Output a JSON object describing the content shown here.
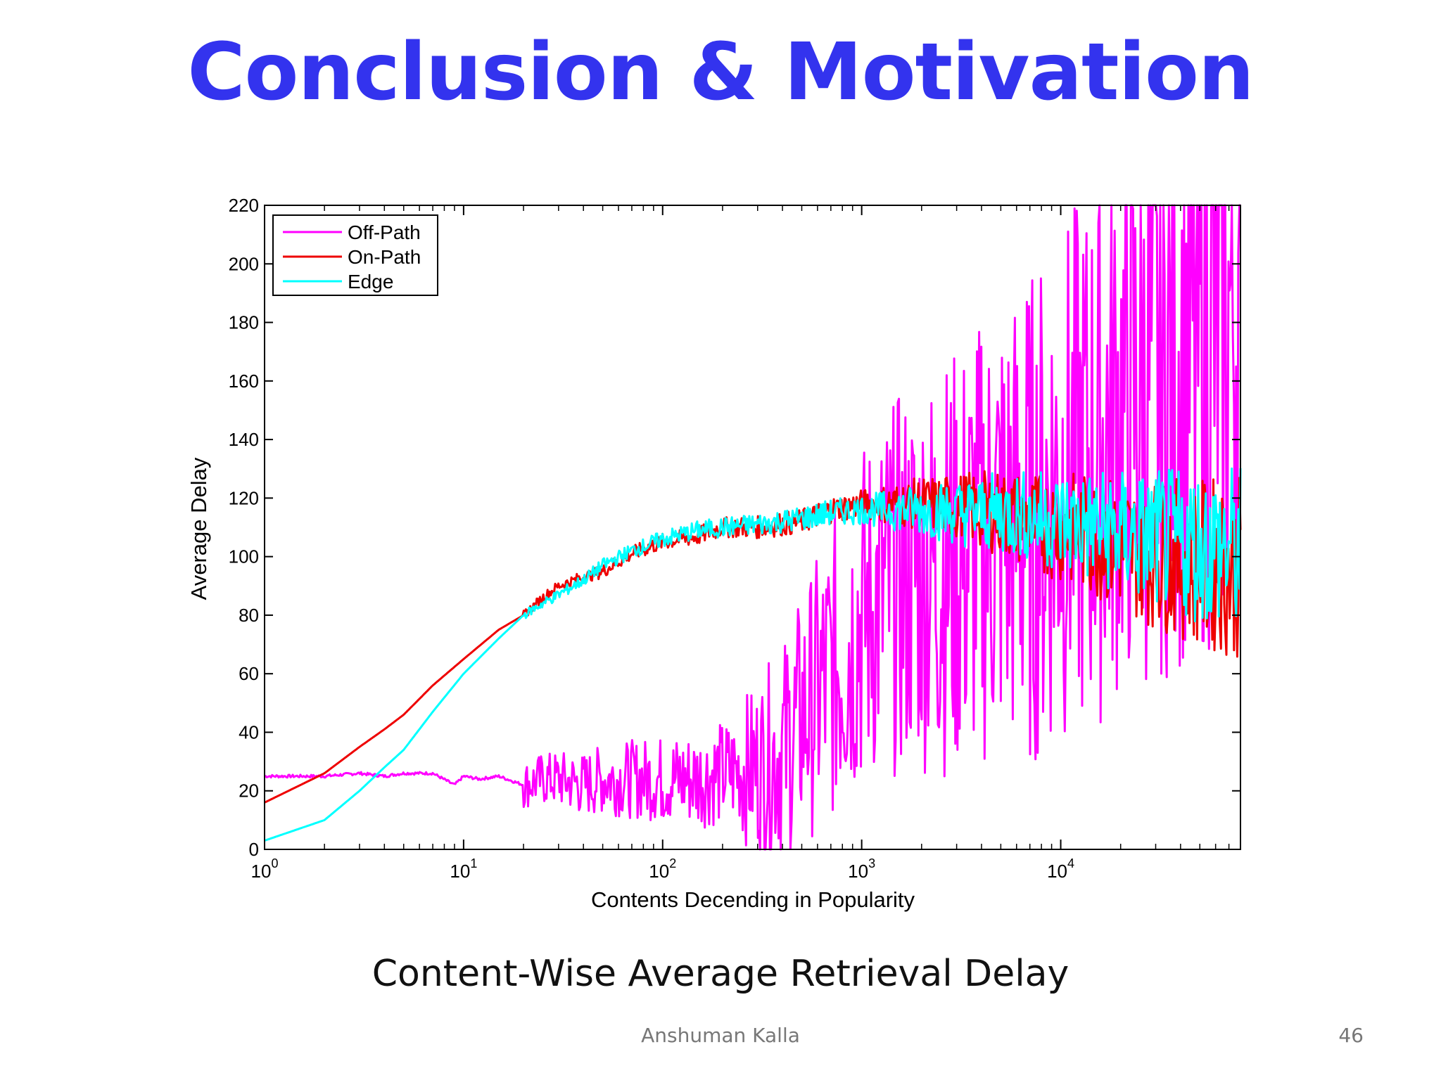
{
  "slide": {
    "title": "Conclusion & Motivation",
    "caption": "Content-Wise Average Retrieval Delay",
    "author": "Anshuman Kalla",
    "page_number": "46"
  },
  "chart_data": {
    "type": "line",
    "title": "",
    "xlabel": "Contents Decending in Popularity",
    "ylabel": "Average Delay",
    "x_scale": "log",
    "xlim": [
      1,
      80000
    ],
    "ylim": [
      0,
      220
    ],
    "y_ticks": [
      0,
      20,
      40,
      60,
      80,
      100,
      120,
      140,
      160,
      180,
      200,
      220
    ],
    "x_ticks": [
      {
        "value": 1,
        "base": "10",
        "exp": "0"
      },
      {
        "value": 10,
        "base": "10",
        "exp": "1"
      },
      {
        "value": 100,
        "base": "10",
        "exp": "2"
      },
      {
        "value": 1000,
        "base": "10",
        "exp": "3"
      },
      {
        "value": 10000,
        "base": "10",
        "exp": "4"
      }
    ],
    "grid": false,
    "legend_position": "top-left",
    "series": [
      {
        "name": "Off-Path",
        "color": "#ff00ff",
        "x": [
          1,
          2,
          3,
          4,
          5,
          7,
          9,
          10,
          12,
          15,
          20,
          25,
          30,
          40,
          50,
          70,
          100,
          150,
          200,
          300,
          400,
          500,
          700,
          1000,
          1500,
          2000,
          3000,
          5000,
          7000,
          10000,
          15000,
          20000,
          30000,
          50000,
          80000
        ],
        "values": [
          25,
          25,
          26,
          25,
          26,
          26,
          22,
          25,
          24,
          25,
          22,
          24,
          24,
          22,
          24,
          24,
          24,
          24,
          26,
          28,
          34,
          45,
          60,
          80,
          90,
          95,
          98,
          110,
          112,
          125,
          135,
          150,
          160,
          175,
          185
        ]
      },
      {
        "name": "On-Path",
        "color": "#ee0000",
        "x": [
          1,
          2,
          3,
          4,
          5,
          7,
          10,
          15,
          20,
          25,
          30,
          40,
          50,
          70,
          100,
          150,
          200,
          300,
          500,
          700,
          1000,
          1500,
          2000,
          3000,
          5000,
          7000,
          10000,
          15000,
          20000,
          30000,
          50000,
          80000
        ],
        "values": [
          16,
          26,
          35,
          41,
          46,
          56,
          65,
          75,
          80,
          86,
          90,
          93,
          95,
          101,
          105,
          107,
          110,
          110,
          112,
          116,
          118,
          118,
          118,
          117,
          115,
          112,
          110,
          107,
          104,
          101,
          98,
          96
        ]
      },
      {
        "name": "Edge",
        "color": "#00ffff",
        "x": [
          1,
          2,
          3,
          4,
          5,
          7,
          10,
          15,
          20,
          25,
          30,
          40,
          50,
          70,
          100,
          150,
          200,
          300,
          500,
          700,
          1000,
          1500,
          2000,
          3000,
          5000,
          7000,
          10000,
          15000,
          20000,
          30000,
          50000,
          80000
        ],
        "values": [
          3,
          10,
          20,
          28,
          34,
          47,
          60,
          72,
          80,
          84,
          87,
          92,
          97,
          102,
          106,
          109,
          110,
          111,
          113,
          115,
          116,
          116,
          116,
          115,
          115,
          114,
          112,
          110,
          108,
          106,
          104,
          102
        ]
      }
    ]
  }
}
